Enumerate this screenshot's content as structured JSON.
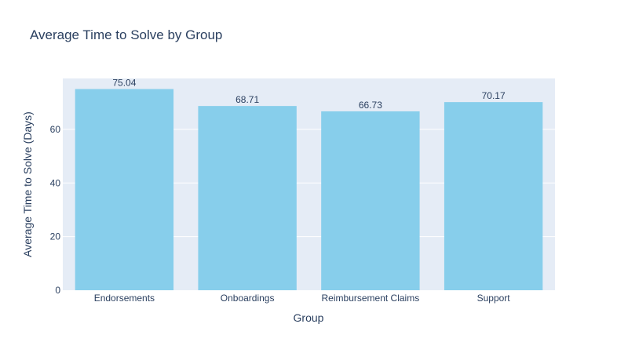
{
  "chart_data": {
    "type": "bar",
    "title": "Average Time to Solve by Group",
    "xlabel": "Group",
    "ylabel": "Average Time to Solve (Days)",
    "categories": [
      "Endorsements",
      "Onboardings",
      "Reimbursement Claims",
      "Support"
    ],
    "values": [
      75.04,
      68.71,
      66.73,
      70.17
    ],
    "value_labels": [
      "75.04",
      "68.71",
      "66.73",
      "70.17"
    ],
    "ylim": [
      0,
      78.99
    ],
    "yticks": [
      0,
      20,
      40,
      60
    ],
    "grid": true,
    "colors": {
      "bar": "#87ceeb",
      "plot_bg": "#e5ecf6",
      "grid": "#ffffff",
      "text": "#2a3f5f"
    }
  }
}
